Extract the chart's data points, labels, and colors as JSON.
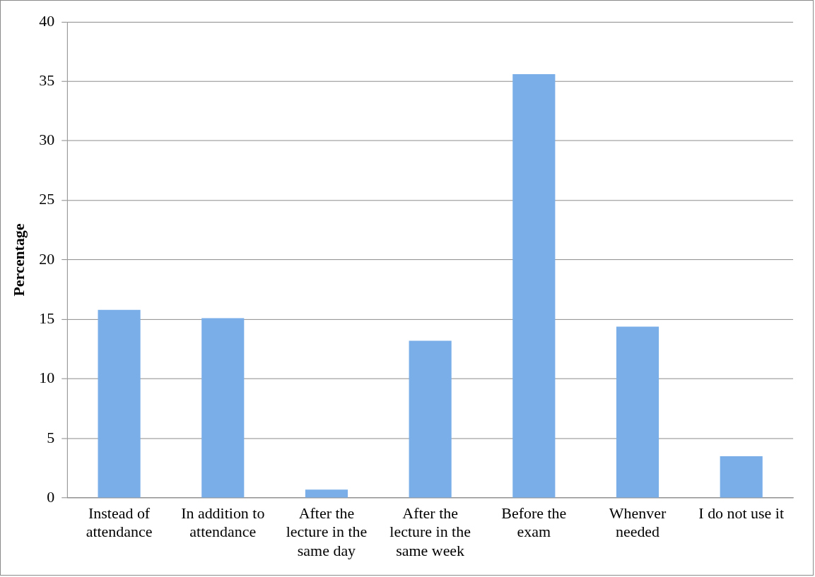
{
  "chart_data": {
    "type": "bar",
    "ylabel": "Percentage",
    "categories": [
      "Instead of attendance",
      "In addition to attendance",
      "After the lecture in the same day",
      "After the lecture in the same week",
      "Before the exam",
      "Whenver needed",
      "I do not use it"
    ],
    "values": [
      15.8,
      15.1,
      0.7,
      13.2,
      35.6,
      14.4,
      3.5
    ],
    "color": "#79aee9",
    "ylim": [
      0,
      40
    ],
    "yticks": [
      0,
      5,
      10,
      15,
      20,
      25,
      30,
      35,
      40
    ],
    "grid": "y",
    "legend": false
  }
}
